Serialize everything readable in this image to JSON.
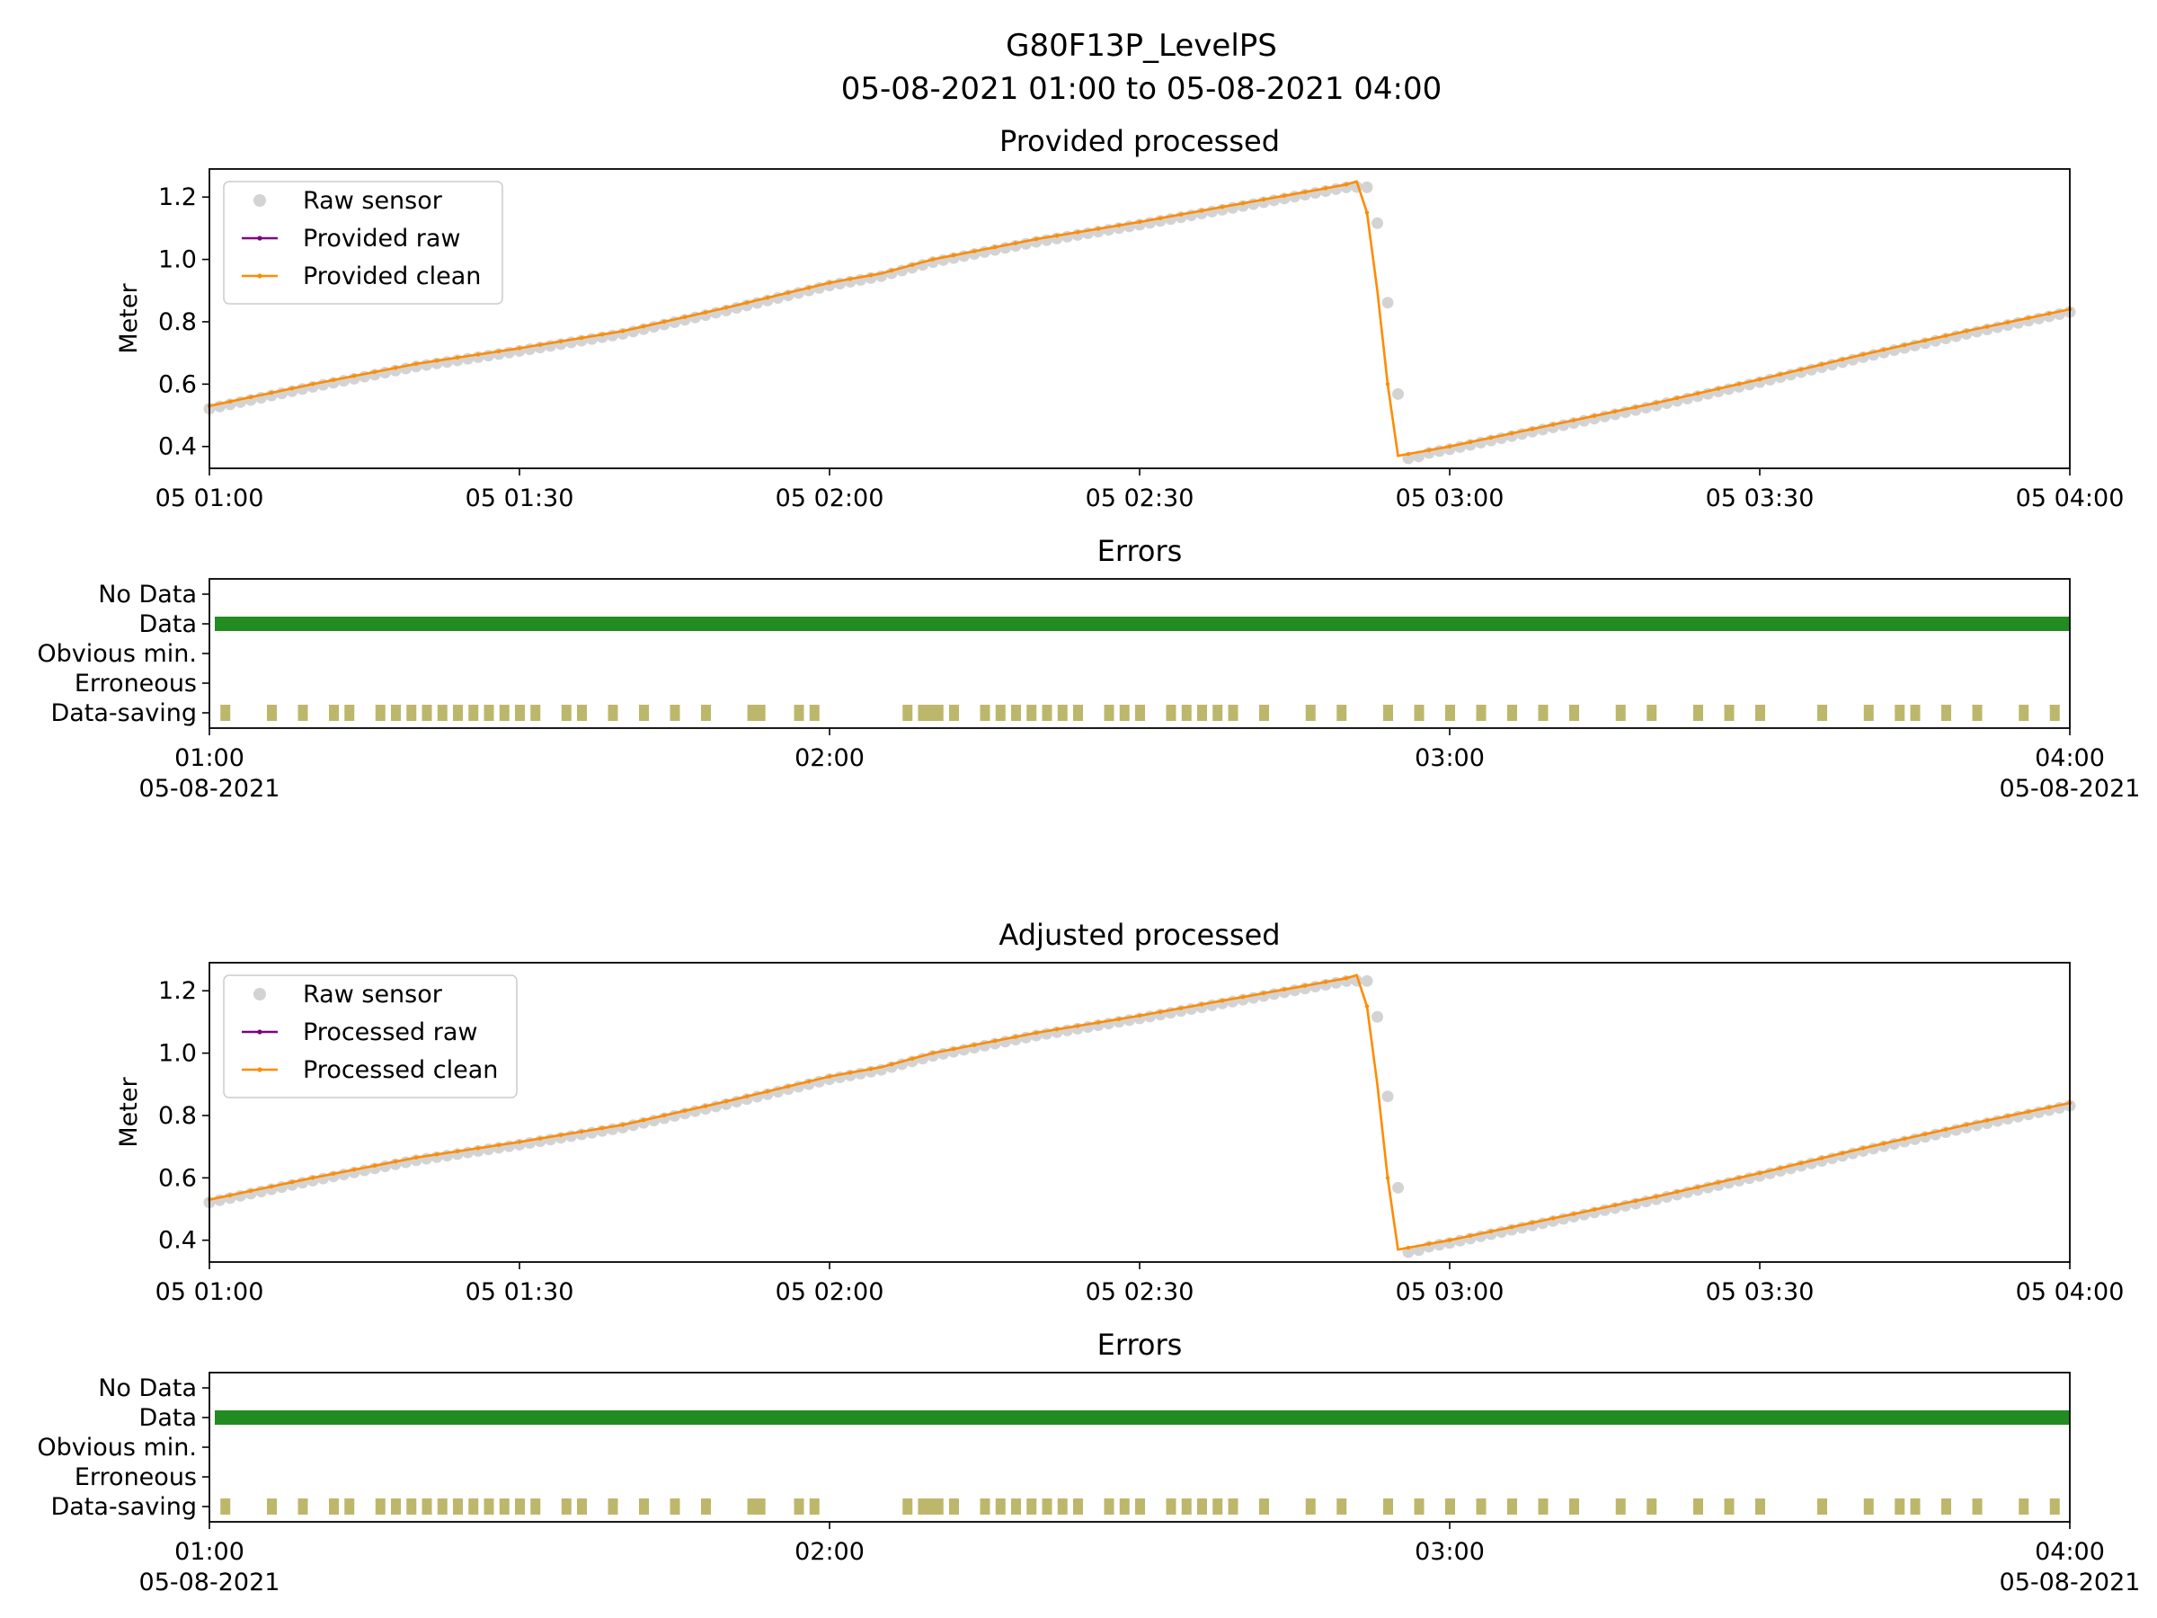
{
  "suptitle": {
    "line1": "G80F13P_LevelPS",
    "line2": "05-08-2021 01:00 to 05-08-2021 04:00"
  },
  "colors": {
    "raw_sensor": "#d3d3d3",
    "raw_line": "#800080",
    "clean_line": "#ff8c00",
    "data_bar": "#228b22",
    "data_saving": "#bdb76b"
  },
  "chart_data": [
    {
      "type": "line",
      "title": "Provided processed",
      "ylabel": "Meter",
      "xlim": [
        "2021-08-05 01:00",
        "2021-08-05 04:00"
      ],
      "ylim": [
        0.33,
        1.29
      ],
      "yticks": [
        "0.4",
        "0.6",
        "0.8",
        "1.0",
        "1.2"
      ],
      "xticks": [
        "05 01:00",
        "05 01:30",
        "05 02:00",
        "05 02:30",
        "05 03:00",
        "05 03:30",
        "05 04:00"
      ],
      "legend_position": "upper-left",
      "series": [
        {
          "name": "Raw sensor",
          "style": "points"
        },
        {
          "name": "Provided raw",
          "style": "line"
        },
        {
          "name": "Provided clean",
          "style": "line"
        }
      ],
      "series_points": [
        {
          "x": "2021-08-05 01:00",
          "y": 0.53
        },
        {
          "x": "2021-08-05 01:10",
          "y": 0.6
        },
        {
          "x": "2021-08-05 01:20",
          "y": 0.665
        },
        {
          "x": "2021-08-05 01:30",
          "y": 0.715
        },
        {
          "x": "2021-08-05 01:40",
          "y": 0.77
        },
        {
          "x": "2021-08-05 01:50",
          "y": 0.845
        },
        {
          "x": "2021-08-05 02:00",
          "y": 0.925
        },
        {
          "x": "2021-08-05 02:05",
          "y": 0.955
        },
        {
          "x": "2021-08-05 02:10",
          "y": 1.0
        },
        {
          "x": "2021-08-05 02:20",
          "y": 1.065
        },
        {
          "x": "2021-08-05 02:30",
          "y": 1.12
        },
        {
          "x": "2021-08-05 02:40",
          "y": 1.18
        },
        {
          "x": "2021-08-05 02:50",
          "y": 1.24
        },
        {
          "x": "2021-08-05 02:51",
          "y": 1.25
        },
        {
          "x": "2021-08-05 02:52",
          "y": 1.15
        },
        {
          "x": "2021-08-05 02:53",
          "y": 0.9
        },
        {
          "x": "2021-08-05 02:54",
          "y": 0.6
        },
        {
          "x": "2021-08-05 02:55",
          "y": 0.37
        },
        {
          "x": "2021-08-05 03:00",
          "y": 0.4
        },
        {
          "x": "2021-08-05 03:10",
          "y": 0.47
        },
        {
          "x": "2021-08-05 03:20",
          "y": 0.54
        },
        {
          "x": "2021-08-05 03:30",
          "y": 0.615
        },
        {
          "x": "2021-08-05 03:40",
          "y": 0.695
        },
        {
          "x": "2021-08-05 03:50",
          "y": 0.77
        },
        {
          "x": "2021-08-05 04:00",
          "y": 0.84
        }
      ]
    },
    {
      "type": "timeline",
      "title": "Errors",
      "categories": [
        "No Data",
        "Data",
        "Obvious min.",
        "Erroneous",
        "Data-saving"
      ],
      "xtick_times": [
        "01:00",
        "02:00",
        "03:00",
        "04:00"
      ],
      "xtick_dates": [
        "05-08-2021",
        "",
        "",
        "05-08-2021"
      ],
      "data_span": [
        "2021-08-05 01:00",
        "2021-08-05 04:00"
      ],
      "data_saving_minutes": [
        1,
        4,
        6,
        8,
        9,
        11,
        12,
        13,
        14,
        15,
        16,
        17,
        18,
        19,
        20,
        21,
        23,
        24,
        26,
        28,
        30,
        32,
        35,
        38,
        39,
        45,
        47,
        48,
        50,
        51,
        52,
        53,
        54,
        55,
        56,
        58,
        59,
        60,
        62,
        63,
        64,
        65,
        66,
        68,
        71,
        73,
        76,
        78,
        80,
        82,
        84,
        86,
        88,
        91,
        93,
        96,
        98,
        100,
        104,
        107,
        109,
        110,
        112,
        114,
        117,
        119
      ],
      "data_saving_from_minute": 35,
      "data_saving_until_minute": 46
    },
    {
      "type": "line",
      "title": "Adjusted processed",
      "ylabel": "Meter",
      "xlim": [
        "2021-08-05 01:00",
        "2021-08-05 04:00"
      ],
      "ylim": [
        0.33,
        1.29
      ],
      "yticks": [
        "0.4",
        "0.6",
        "0.8",
        "1.0",
        "1.2"
      ],
      "xticks": [
        "05 01:00",
        "05 01:30",
        "05 02:00",
        "05 02:30",
        "05 03:00",
        "05 03:30",
        "05 04:00"
      ],
      "legend_position": "upper-left",
      "series": [
        {
          "name": "Raw sensor",
          "style": "points"
        },
        {
          "name": "Processed raw",
          "style": "line"
        },
        {
          "name": "Processed clean",
          "style": "line"
        }
      ],
      "series_points": [
        {
          "x": "2021-08-05 01:00",
          "y": 0.53
        },
        {
          "x": "2021-08-05 01:10",
          "y": 0.6
        },
        {
          "x": "2021-08-05 01:20",
          "y": 0.665
        },
        {
          "x": "2021-08-05 01:30",
          "y": 0.715
        },
        {
          "x": "2021-08-05 01:40",
          "y": 0.77
        },
        {
          "x": "2021-08-05 01:50",
          "y": 0.845
        },
        {
          "x": "2021-08-05 02:00",
          "y": 0.925
        },
        {
          "x": "2021-08-05 02:05",
          "y": 0.955
        },
        {
          "x": "2021-08-05 02:10",
          "y": 1.0
        },
        {
          "x": "2021-08-05 02:20",
          "y": 1.065
        },
        {
          "x": "2021-08-05 02:30",
          "y": 1.12
        },
        {
          "x": "2021-08-05 02:40",
          "y": 1.18
        },
        {
          "x": "2021-08-05 02:50",
          "y": 1.24
        },
        {
          "x": "2021-08-05 02:51",
          "y": 1.25
        },
        {
          "x": "2021-08-05 02:52",
          "y": 1.15
        },
        {
          "x": "2021-08-05 02:53",
          "y": 0.9
        },
        {
          "x": "2021-08-05 02:54",
          "y": 0.6
        },
        {
          "x": "2021-08-05 02:55",
          "y": 0.37
        },
        {
          "x": "2021-08-05 03:00",
          "y": 0.4
        },
        {
          "x": "2021-08-05 03:10",
          "y": 0.47
        },
        {
          "x": "2021-08-05 03:20",
          "y": 0.54
        },
        {
          "x": "2021-08-05 03:30",
          "y": 0.615
        },
        {
          "x": "2021-08-05 03:40",
          "y": 0.695
        },
        {
          "x": "2021-08-05 03:50",
          "y": 0.77
        },
        {
          "x": "2021-08-05 04:00",
          "y": 0.84
        }
      ]
    },
    {
      "type": "timeline",
      "title": "Errors",
      "categories": [
        "No Data",
        "Data",
        "Obvious min.",
        "Erroneous",
        "Data-saving"
      ],
      "xtick_times": [
        "01:00",
        "02:00",
        "03:00",
        "04:00"
      ],
      "xtick_dates": [
        "05-08-2021",
        "",
        "",
        "05-08-2021"
      ],
      "data_span": [
        "2021-08-05 01:00",
        "2021-08-05 04:00"
      ],
      "data_saving_minutes": [
        1,
        4,
        6,
        8,
        9,
        11,
        12,
        13,
        14,
        15,
        16,
        17,
        18,
        19,
        20,
        21,
        23,
        24,
        26,
        28,
        30,
        32,
        35,
        38,
        39,
        45,
        47,
        48,
        50,
        51,
        52,
        53,
        54,
        55,
        56,
        58,
        59,
        60,
        62,
        63,
        64,
        65,
        66,
        68,
        71,
        73,
        76,
        78,
        80,
        82,
        84,
        86,
        88,
        91,
        93,
        96,
        98,
        100,
        104,
        107,
        109,
        110,
        112,
        114,
        117,
        119
      ],
      "data_saving_from_minute": 35,
      "data_saving_until_minute": 46
    }
  ]
}
